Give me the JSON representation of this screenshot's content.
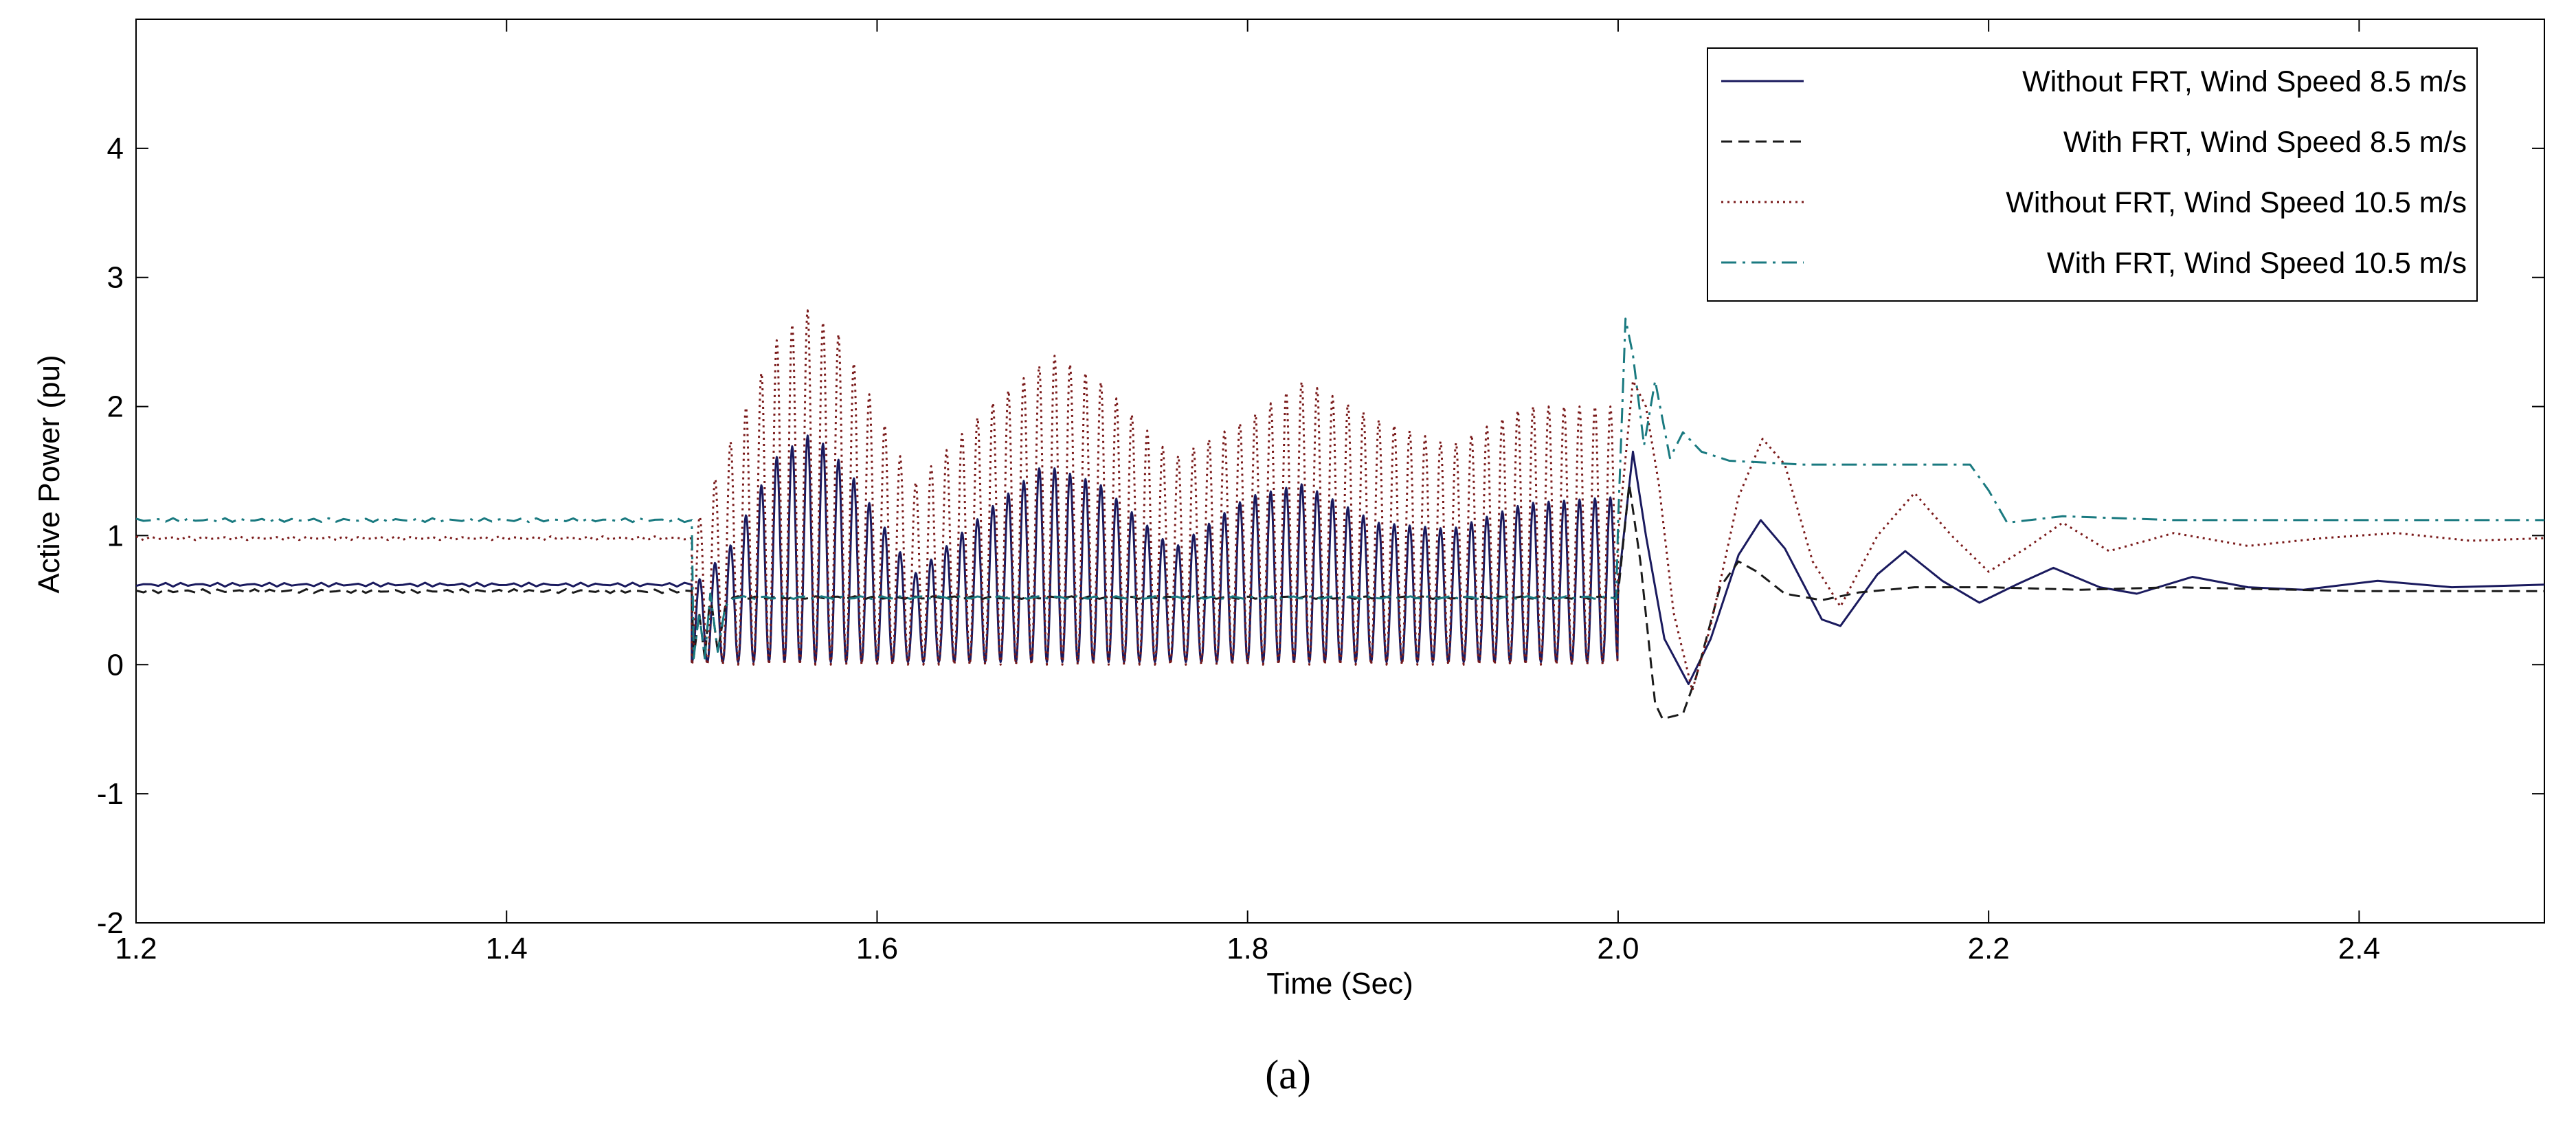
{
  "chart_data": {
    "type": "line",
    "title": "",
    "xlabel": "Time (Sec)",
    "ylabel": "Active Power (pu)",
    "xlim": [
      1.2,
      2.5
    ],
    "ylim": [
      -2,
      5
    ],
    "xticks": [
      "1.2",
      "1.4",
      "1.6",
      "1.8",
      "2.0",
      "2.2",
      "2.4"
    ],
    "xtick_values": [
      1.2,
      1.4,
      1.6,
      1.8,
      2.0,
      2.2,
      2.4
    ],
    "yticks": [
      "-2",
      "-1",
      "0",
      "1",
      "2",
      "3",
      "4"
    ],
    "ytick_values": [
      -2,
      -1,
      0,
      1,
      2,
      3,
      4
    ],
    "grid": false,
    "legend_position": "top-right",
    "fault": {
      "start": 1.5,
      "end": 2.0,
      "oscillation_frequency_hz": 120
    },
    "series": [
      {
        "name": "Without FRT, Wind Speed 8.5 m/s",
        "style": "solid",
        "color": "#1a1a5e",
        "pre_fault": 0.62,
        "fault_min": 0.02,
        "fault_envelope": [
          [
            1.5,
            0.6
          ],
          [
            1.52,
            0.9
          ],
          [
            1.545,
            1.6
          ],
          [
            1.565,
            1.8
          ],
          [
            1.585,
            1.5
          ],
          [
            1.62,
            0.7
          ],
          [
            1.66,
            1.2
          ],
          [
            1.69,
            1.55
          ],
          [
            1.72,
            1.4
          ],
          [
            1.76,
            0.9
          ],
          [
            1.8,
            1.3
          ],
          [
            1.83,
            1.4
          ],
          [
            1.87,
            1.1
          ],
          [
            1.91,
            1.05
          ],
          [
            1.95,
            1.25
          ],
          [
            2.0,
            1.3
          ]
        ],
        "post_fault": [
          [
            2.0,
            0.6
          ],
          [
            2.008,
            1.65
          ],
          [
            2.015,
            1.0
          ],
          [
            2.025,
            0.2
          ],
          [
            2.038,
            -0.15
          ],
          [
            2.05,
            0.2
          ],
          [
            2.065,
            0.85
          ],
          [
            2.077,
            1.12
          ],
          [
            2.09,
            0.9
          ],
          [
            2.11,
            0.35
          ],
          [
            2.12,
            0.3
          ],
          [
            2.14,
            0.7
          ],
          [
            2.155,
            0.88
          ],
          [
            2.175,
            0.65
          ],
          [
            2.195,
            0.48
          ],
          [
            2.215,
            0.62
          ],
          [
            2.235,
            0.75
          ],
          [
            2.26,
            0.6
          ],
          [
            2.28,
            0.55
          ],
          [
            2.31,
            0.68
          ],
          [
            2.34,
            0.6
          ],
          [
            2.37,
            0.58
          ],
          [
            2.41,
            0.65
          ],
          [
            2.45,
            0.6
          ],
          [
            2.5,
            0.62
          ]
        ]
      },
      {
        "name": "With FRT, Wind Speed 8.5 m/s",
        "style": "dashed",
        "color": "#1a1a1a",
        "pre_fault": 0.57,
        "fault_level": 0.52,
        "post_fault": [
          [
            2.0,
            0.55
          ],
          [
            2.006,
            1.4
          ],
          [
            2.012,
            0.8
          ],
          [
            2.02,
            -0.3
          ],
          [
            2.024,
            -0.42
          ],
          [
            2.035,
            -0.38
          ],
          [
            2.042,
            -0.1
          ],
          [
            2.055,
            0.6
          ],
          [
            2.065,
            0.8
          ],
          [
            2.075,
            0.72
          ],
          [
            2.09,
            0.55
          ],
          [
            2.11,
            0.5
          ],
          [
            2.13,
            0.56
          ],
          [
            2.16,
            0.6
          ],
          [
            2.2,
            0.6
          ],
          [
            2.25,
            0.58
          ],
          [
            2.3,
            0.6
          ],
          [
            2.4,
            0.57
          ],
          [
            2.5,
            0.57
          ]
        ]
      },
      {
        "name": "Without FRT, Wind Speed 10.5 m/s",
        "style": "dotted",
        "color": "#7a1a1a",
        "pre_fault": 0.98,
        "fault_min": 0.0,
        "fault_envelope": [
          [
            1.5,
            1.0
          ],
          [
            1.52,
            1.7
          ],
          [
            1.545,
            2.5
          ],
          [
            1.562,
            2.75
          ],
          [
            1.58,
            2.55
          ],
          [
            1.62,
            1.4
          ],
          [
            1.66,
            2.0
          ],
          [
            1.695,
            2.4
          ],
          [
            1.72,
            2.2
          ],
          [
            1.76,
            1.6
          ],
          [
            1.8,
            1.9
          ],
          [
            1.83,
            2.2
          ],
          [
            1.87,
            1.9
          ],
          [
            1.91,
            1.7
          ],
          [
            1.95,
            2.0
          ],
          [
            2.0,
            2.0
          ]
        ],
        "post_fault": [
          [
            2.0,
            1.0
          ],
          [
            2.008,
            2.2
          ],
          [
            2.015,
            2.0
          ],
          [
            2.022,
            1.4
          ],
          [
            2.03,
            0.4
          ],
          [
            2.04,
            -0.2
          ],
          [
            2.05,
            0.3
          ],
          [
            2.065,
            1.3
          ],
          [
            2.078,
            1.75
          ],
          [
            2.09,
            1.55
          ],
          [
            2.105,
            0.8
          ],
          [
            2.12,
            0.45
          ],
          [
            2.14,
            1.0
          ],
          [
            2.16,
            1.33
          ],
          [
            2.18,
            1.0
          ],
          [
            2.2,
            0.72
          ],
          [
            2.22,
            0.9
          ],
          [
            2.24,
            1.1
          ],
          [
            2.265,
            0.88
          ],
          [
            2.3,
            1.02
          ],
          [
            2.34,
            0.92
          ],
          [
            2.38,
            0.98
          ],
          [
            2.42,
            1.02
          ],
          [
            2.46,
            0.96
          ],
          [
            2.5,
            0.98
          ]
        ]
      },
      {
        "name": "With FRT, Wind Speed 10.5 m/s",
        "style": "dashdot",
        "color": "#1a7a80",
        "pre_fault": 1.12,
        "fault_level": 0.52,
        "post_fault": [
          [
            2.0,
            1.1
          ],
          [
            2.004,
            2.68
          ],
          [
            2.008,
            2.4
          ],
          [
            2.014,
            1.7
          ],
          [
            2.02,
            2.2
          ],
          [
            2.028,
            1.6
          ],
          [
            2.035,
            1.8
          ],
          [
            2.045,
            1.65
          ],
          [
            2.06,
            1.58
          ],
          [
            2.1,
            1.55
          ],
          [
            2.15,
            1.55
          ],
          [
            2.19,
            1.55
          ],
          [
            2.2,
            1.35
          ],
          [
            2.21,
            1.1
          ],
          [
            2.24,
            1.15
          ],
          [
            2.3,
            1.12
          ],
          [
            2.4,
            1.12
          ],
          [
            2.5,
            1.12
          ]
        ]
      }
    ]
  },
  "caption": "(a)"
}
